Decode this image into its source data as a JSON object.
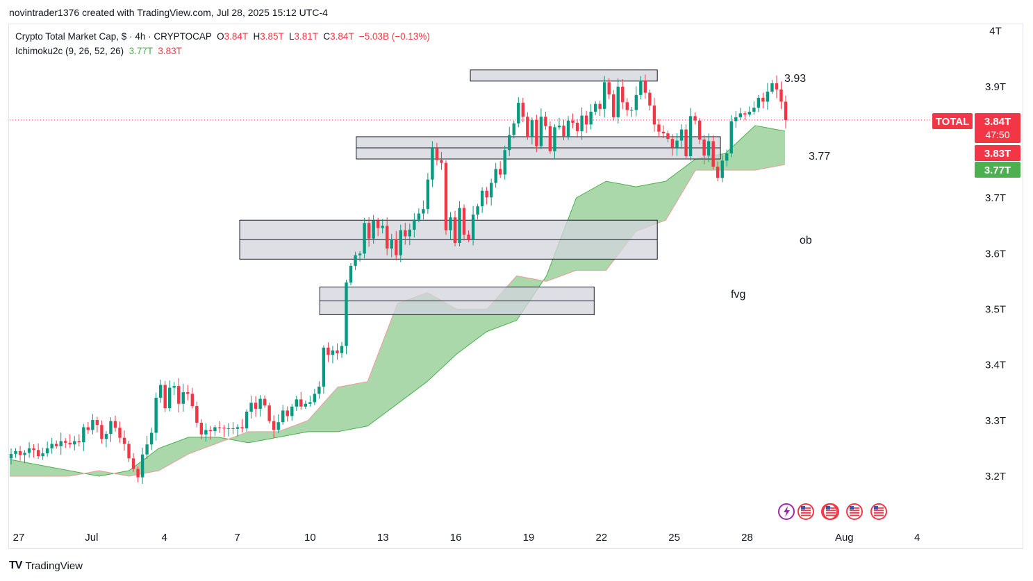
{
  "header": {
    "credit": "novintrader1376 created with TradingView.com, Jul 28, 2025 15:12 UTC-4"
  },
  "legend": {
    "symbol": "Crypto Total Market Cap, $ · 4h · CRYPTOCAP",
    "o_label": "O",
    "o_value": "3.84T",
    "h_label": "H",
    "h_value": "3.85T",
    "l_label": "L",
    "l_value": "3.81T",
    "c_label": "C",
    "c_value": "3.84T",
    "change": "−5.03B (−0.13%)",
    "indicator": "Ichimoku2c (9, 26, 52, 26)",
    "ind_value_1": "3.77T",
    "ind_value_2": "3.83T"
  },
  "price_tags": {
    "symbol": "TOTAL",
    "price": "3.84T",
    "countdown": "47:50",
    "span_b": "3.83T",
    "span_a": "3.77T"
  },
  "annotations": {
    "top": "3.93",
    "mid": "3.77",
    "ob": "ob",
    "fvg": "fvg"
  },
  "footer": {
    "brand": "TradingView"
  },
  "colors": {
    "up": "#089981",
    "down": "#f23645",
    "cloud": "#a5d6a7",
    "box_fill": "#d1d4dc",
    "tag_red": "#f23645",
    "tag_green": "#4caf50"
  },
  "icons": [
    "lightning-event-icon",
    "us-flag-event-icon"
  ],
  "chart_data": {
    "type": "candlestick",
    "timeframe": "4h",
    "y_ticks": [
      "3.2T",
      "3.3T",
      "3.4T",
      "3.5T",
      "3.6T",
      "3.7T",
      "3.9T",
      "4T"
    ],
    "x_ticks": [
      {
        "label": "27",
        "day": 27.0
      },
      {
        "label": "Jul",
        "day": 30.0
      },
      {
        "label": "4",
        "day": 33.0
      },
      {
        "label": "7",
        "day": 36.0
      },
      {
        "label": "10",
        "day": 39.0
      },
      {
        "label": "13",
        "day": 42.0
      },
      {
        "label": "16",
        "day": 45.0
      },
      {
        "label": "19",
        "day": 48.0
      },
      {
        "label": "22",
        "day": 51.0
      },
      {
        "label": "25",
        "day": 54.0
      },
      {
        "label": "28",
        "day": 57.0
      },
      {
        "label": "Aug",
        "day": 61.0
      },
      {
        "label": "4",
        "day": 64.0
      }
    ],
    "ylim": [
      3.16,
      4.05
    ],
    "xlim": [
      27.0,
      66.0
    ],
    "ohlc_close": [
      3.24,
      3.245,
      3.238,
      3.242,
      3.25,
      3.247,
      3.236,
      3.241,
      3.25,
      3.258,
      3.254,
      3.263,
      3.26,
      3.257,
      3.263,
      3.261,
      3.288,
      3.283,
      3.301,
      3.292,
      3.267,
      3.276,
      3.299,
      3.287,
      3.269,
      3.258,
      3.232,
      3.213,
      3.198,
      3.239,
      3.257,
      3.278,
      3.341,
      3.364,
      3.322,
      3.359,
      3.362,
      3.33,
      3.351,
      3.348,
      3.326,
      3.296,
      3.275,
      3.283,
      3.281,
      3.288,
      3.287,
      3.286,
      3.286,
      3.285,
      3.288,
      3.286,
      3.316,
      3.332,
      3.321,
      3.339,
      3.327,
      3.299,
      3.283,
      3.297,
      3.318,
      3.308,
      3.325,
      3.338,
      3.325,
      3.33,
      3.333,
      3.348,
      3.361,
      3.431,
      3.418,
      3.426,
      3.421,
      3.434,
      3.548,
      3.578,
      3.597,
      3.6,
      3.655,
      3.627,
      3.659,
      3.646,
      3.65,
      3.609,
      3.626,
      3.597,
      3.642,
      3.631,
      3.643,
      3.661,
      3.672,
      3.68,
      3.733,
      3.789,
      3.768,
      3.763,
      3.642,
      3.665,
      3.619,
      3.682,
      3.634,
      3.625,
      3.67,
      3.685,
      3.713,
      3.701,
      3.727,
      3.752,
      3.742,
      3.786,
      3.813,
      3.834,
      3.871,
      3.846,
      3.809,
      3.84,
      3.793,
      3.846,
      3.829,
      3.784,
      3.827,
      3.83,
      3.811,
      3.839,
      3.835,
      3.82,
      3.848,
      3.832,
      3.855,
      3.869,
      3.86,
      3.908,
      3.886,
      3.845,
      3.9,
      3.872,
      3.858,
      3.858,
      3.885,
      3.911,
      3.889,
      3.866,
      3.832,
      3.819,
      3.816,
      3.806,
      3.791,
      3.803,
      3.823,
      3.775,
      3.847,
      3.839,
      3.805,
      3.776,
      3.802,
      3.756,
      3.736,
      3.767,
      3.78,
      3.838,
      3.845,
      3.852,
      3.85,
      3.855,
      3.862,
      3.88,
      3.873,
      3.891,
      3.906,
      3.895,
      3.873,
      3.84
    ],
    "cloud_span_a": [
      3.23,
      3.22,
      3.21,
      3.2,
      3.21,
      3.25,
      3.27,
      3.27,
      3.26,
      3.27,
      3.28,
      3.28,
      3.29,
      3.33,
      3.37,
      3.42,
      3.46,
      3.48,
      3.56,
      3.7,
      3.73,
      3.72,
      3.73,
      3.77,
      3.78,
      3.83,
      3.82
    ],
    "cloud_span_b": [
      3.2,
      3.2,
      3.2,
      3.21,
      3.2,
      3.21,
      3.24,
      3.26,
      3.28,
      3.28,
      3.3,
      3.36,
      3.37,
      3.51,
      3.53,
      3.5,
      3.5,
      3.56,
      3.55,
      3.57,
      3.57,
      3.64,
      3.66,
      3.75,
      3.75,
      3.75,
      3.76
    ],
    "zones": [
      {
        "name": "3.93",
        "low": 3.91,
        "high": 3.93,
        "mid": null,
        "from_day": 45.6,
        "to_day": 53.3
      },
      {
        "name": "3.77",
        "low": 3.77,
        "high": 3.81,
        "mid": 3.79,
        "from_day": 40.9,
        "to_day": 55.9
      },
      {
        "name": "ob",
        "low": 3.59,
        "high": 3.66,
        "mid": 3.625,
        "from_day": 36.1,
        "to_day": 53.3
      },
      {
        "name": "fvg",
        "low": 3.49,
        "high": 3.54,
        "mid": 3.515,
        "from_day": 39.4,
        "to_day": 50.7
      }
    ],
    "last_price": 3.84,
    "span_a_last": 3.77,
    "span_b_last": 3.83
  }
}
